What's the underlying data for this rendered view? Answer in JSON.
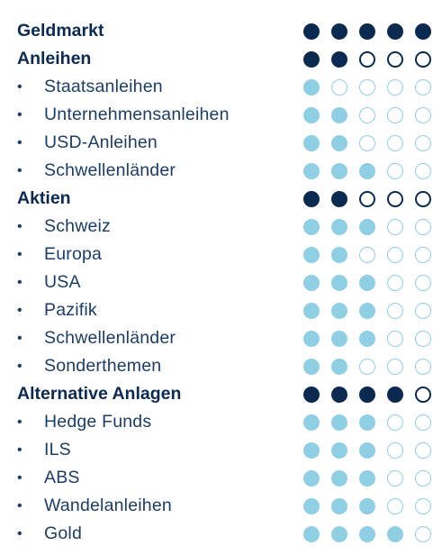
{
  "rows": [
    {
      "label": "Geldmarkt",
      "level": "header",
      "rating": 5
    },
    {
      "label": "Anleihen",
      "level": "header",
      "rating": 2
    },
    {
      "label": "Staatsanleihen",
      "level": "sub",
      "rating": 1
    },
    {
      "label": "Unternehmensanleihen",
      "level": "sub",
      "rating": 2
    },
    {
      "label": "USD-Anleihen",
      "level": "sub",
      "rating": 2
    },
    {
      "label": "Schwellenländer",
      "level": "sub",
      "rating": 3
    },
    {
      "label": "Aktien",
      "level": "header",
      "rating": 2
    },
    {
      "label": "Schweiz",
      "level": "sub",
      "rating": 3
    },
    {
      "label": "Europa",
      "level": "sub",
      "rating": 2
    },
    {
      "label": "USA",
      "level": "sub",
      "rating": 3
    },
    {
      "label": "Pazifik",
      "level": "sub",
      "rating": 3
    },
    {
      "label": "Schwellenländer",
      "level": "sub",
      "rating": 3
    },
    {
      "label": "Sonderthemen",
      "level": "sub",
      "rating": 2
    },
    {
      "label": "Alternative Anlagen",
      "level": "header",
      "rating": 4
    },
    {
      "label": "Hedge Funds",
      "level": "sub",
      "rating": 3
    },
    {
      "label": "ILS",
      "level": "sub",
      "rating": 3
    },
    {
      "label": "ABS",
      "level": "sub",
      "rating": 3
    },
    {
      "label": "Wandelanleihen",
      "level": "sub",
      "rating": 3
    },
    {
      "label": "Gold",
      "level": "sub",
      "rating": 4
    }
  ],
  "rating_max": 5,
  "bullet_glyph": "•",
  "colors": {
    "header_text": "#0b2a52",
    "sub_text": "#1b3d66",
    "header_dot": "#0b2a52",
    "sub_dot": "#8fcfe3"
  }
}
